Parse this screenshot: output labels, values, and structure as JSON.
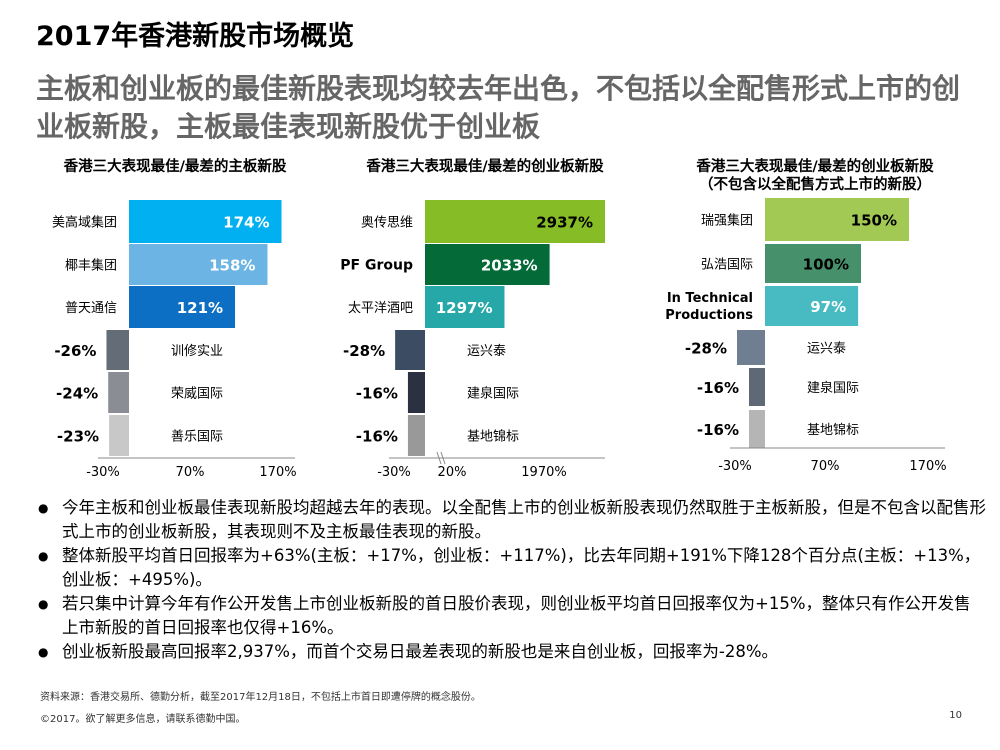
{
  "slide": {
    "title": "2017年香港新股市场概览",
    "subtitle": "主板和创业板的最佳新股表现均较去年出色，不包括以全配售形式上市的创业板新股，主板最佳表现新股优于创业板"
  },
  "chart_data": [
    {
      "type": "bar",
      "orientation": "horizontal",
      "title": "香港三大表现最佳/最差的主板新股",
      "categories": [
        "美高域集团",
        "椰丰集团",
        "普天通信",
        "训修实业",
        "荣威国际",
        "善乐国际"
      ],
      "values": [
        174,
        158,
        121,
        -26,
        -24,
        -23
      ],
      "value_labels": [
        "174%",
        "158%",
        "121%",
        "-26%",
        "-24%",
        "-23%"
      ],
      "bar_colors": [
        "#00B0F0",
        "#6CB4E4",
        "#0D6FC4",
        "#646D77",
        "#8A8E94",
        "#C8C8C8"
      ],
      "xlim": [
        -30,
        170
      ],
      "ticks": [
        -30,
        70,
        170
      ],
      "tick_labels": [
        "-30%",
        "70%",
        "170%"
      ],
      "grid": false
    },
    {
      "type": "bar",
      "orientation": "horizontal",
      "title": "香港三大表现最佳/最差的创业板新股",
      "categories": [
        "奥传思维",
        "PF Group",
        "太平洋酒吧",
        "运兴泰",
        "建泉国际",
        "基地锦标"
      ],
      "values": [
        2937,
        2033,
        1297,
        -28,
        -16,
        -16
      ],
      "value_labels": [
        "2937%",
        "2033%",
        "1297%",
        "-28%",
        "-16%",
        "-16%"
      ],
      "bar_colors": [
        "#86BC25",
        "#046A38",
        "#26A7A8",
        "#3B4C63",
        "#2B3140",
        "#999999"
      ],
      "xlim": [
        -30,
        3000
      ],
      "axis_breaks": [
        -30,
        20,
        1970
      ],
      "ticks": [
        -30,
        20,
        1970
      ],
      "tick_labels": [
        "-30%",
        "20%",
        "1970%"
      ],
      "grid": false
    },
    {
      "type": "bar",
      "orientation": "horizontal",
      "title": "香港三大表现最佳/最差的创业板新股\n（不包含以全配售方式上市的新股）",
      "categories": [
        "瑞强集团",
        "弘浩国际",
        "In Technical Productions",
        "运兴泰",
        "建泉国际",
        "基地锦标"
      ],
      "values": [
        150,
        100,
        97,
        -28,
        -16,
        -16
      ],
      "value_labels": [
        "150%",
        "100%",
        "97%",
        "-28%",
        "-16%",
        "-16%"
      ],
      "bar_colors": [
        "#A2C954",
        "#47906C",
        "#48BAC2",
        "#707E91",
        "#5E6876",
        "#B5B5B5"
      ],
      "xlim": [
        -30,
        170
      ],
      "ticks": [
        -30,
        70,
        170
      ],
      "tick_labels": [
        "-30%",
        "70%",
        "170%"
      ],
      "grid": false
    }
  ],
  "bullets": [
    "今年主板和创业板最佳表现新股均超越去年的表现。以全配售上市的创业板新股表现仍然取胜于主板新股，但是不包含以配售形式上市的创业板新股，其表现则不及主板最佳表现的新股。",
    "整体新股平均首日回报率为+63%(主板：+17%，创业板：+117%)，比去年同期+191%下降128个百分点(主板：+13%，创业板：+495%)。",
    "若只集中计算今年有作公开发售上市创业板新股的首日股价表现，则创业板平均首日回报率仅为+15%，整体只有作公开发售上市新股的首日回报率也仅得+16%。",
    "创业板新股最高回报率2,937%，而首个交易日最差表现的新股也是来自创业板，回报率为-28%。"
  ],
  "footer": {
    "source": "资料来源：香港交易所、德勤分析，截至2017年12月18日，不包括上市首日即遭停牌的概念股份。",
    "copyright": "©2017。欲了解更多信息，请联系德勤中国。",
    "page_number": "10"
  }
}
